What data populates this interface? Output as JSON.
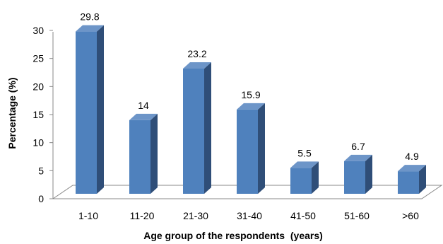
{
  "chart_data": {
    "type": "bar",
    "title": "",
    "xlabel": "Age group of the respondents  (years)",
    "ylabel": "Percentage (%)",
    "ylim": [
      0,
      30
    ],
    "yticks": [
      0,
      5,
      10,
      15,
      20,
      25,
      30
    ],
    "categories": [
      "1-10",
      "11-20",
      "21-30",
      "31-40",
      "41-50",
      "51-60",
      ">60"
    ],
    "values": [
      29.8,
      14,
      23.2,
      15.9,
      5.5,
      6.7,
      4.9
    ],
    "data_labels": [
      "29.8",
      "14",
      "23.2",
      "15.9",
      "5.5",
      "6.7",
      "4.9"
    ],
    "grid": false,
    "legend": "none",
    "colors": {
      "bar_front": "#4f81bd",
      "bar_side": "#2f4e78",
      "bar_top": "#6d95c8",
      "floor": "#ffffff",
      "floor_stroke": "#888888"
    }
  }
}
